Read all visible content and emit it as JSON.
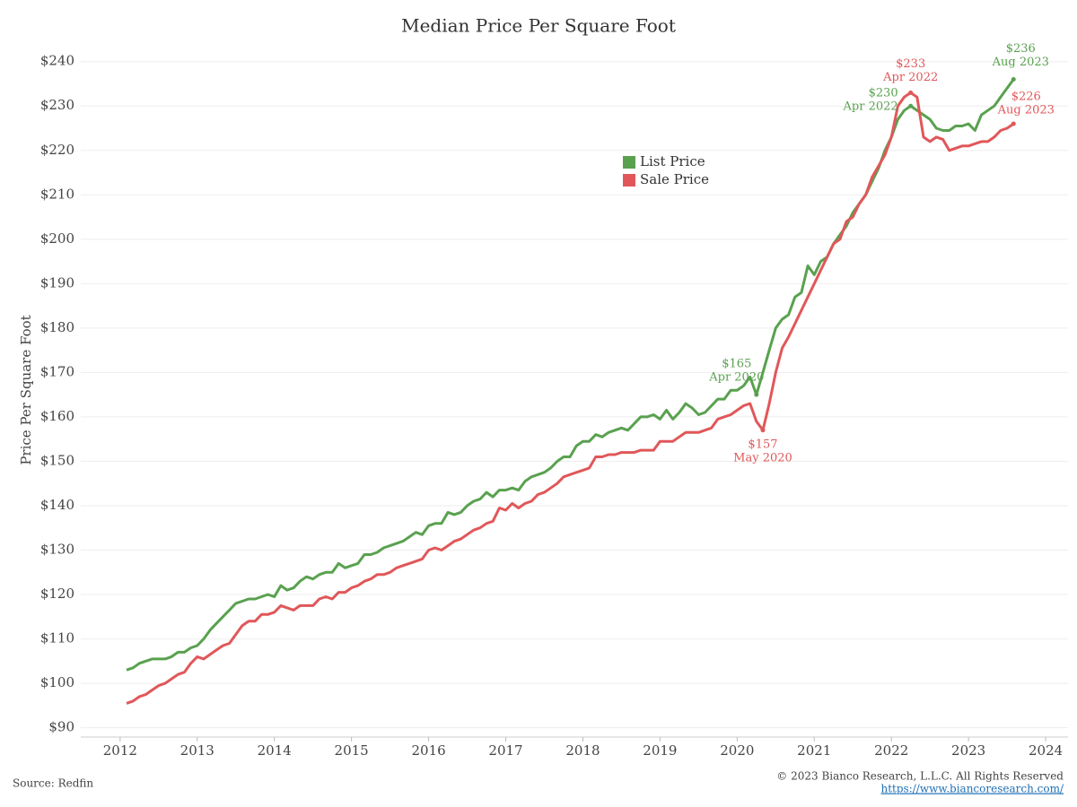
{
  "chart_data": {
    "type": "line",
    "title": "Median Price Per Square Foot",
    "y_label": "Price Per Square Foot",
    "source": "Source: Redfin",
    "copyright": "© 2023 Bianco Research, L.L.C. All Rights Reserved",
    "url": "https://www.biancoresearch.com/",
    "legend": "top-center",
    "grid": true,
    "x": [
      "2012-02",
      "2012-03",
      "2012-04",
      "2012-05",
      "2012-06",
      "2012-07",
      "2012-08",
      "2012-09",
      "2012-10",
      "2012-11",
      "2012-12",
      "2013-01",
      "2013-02",
      "2013-03",
      "2013-04",
      "2013-05",
      "2013-06",
      "2013-07",
      "2013-08",
      "2013-09",
      "2013-10",
      "2013-11",
      "2013-12",
      "2014-01",
      "2014-02",
      "2014-03",
      "2014-04",
      "2014-05",
      "2014-06",
      "2014-07",
      "2014-08",
      "2014-09",
      "2014-10",
      "2014-11",
      "2014-12",
      "2015-01",
      "2015-02",
      "2015-03",
      "2015-04",
      "2015-05",
      "2015-06",
      "2015-07",
      "2015-08",
      "2015-09",
      "2015-10",
      "2015-11",
      "2015-12",
      "2016-01",
      "2016-02",
      "2016-03",
      "2016-04",
      "2016-05",
      "2016-06",
      "2016-07",
      "2016-08",
      "2016-09",
      "2016-10",
      "2016-11",
      "2016-12",
      "2017-01",
      "2017-02",
      "2017-03",
      "2017-04",
      "2017-05",
      "2017-06",
      "2017-07",
      "2017-08",
      "2017-09",
      "2017-10",
      "2017-11",
      "2017-12",
      "2018-01",
      "2018-02",
      "2018-03",
      "2018-04",
      "2018-05",
      "2018-06",
      "2018-07",
      "2018-08",
      "2018-09",
      "2018-10",
      "2018-11",
      "2018-12",
      "2019-01",
      "2019-02",
      "2019-03",
      "2019-04",
      "2019-05",
      "2019-06",
      "2019-07",
      "2019-08",
      "2019-09",
      "2019-10",
      "2019-11",
      "2019-12",
      "2020-01",
      "2020-02",
      "2020-03",
      "2020-04",
      "2020-05",
      "2020-06",
      "2020-07",
      "2020-08",
      "2020-09",
      "2020-10",
      "2020-11",
      "2020-12",
      "2021-01",
      "2021-02",
      "2021-03",
      "2021-04",
      "2021-05",
      "2021-06",
      "2021-07",
      "2021-08",
      "2021-09",
      "2021-10",
      "2021-11",
      "2021-12",
      "2022-01",
      "2022-02",
      "2022-03",
      "2022-04",
      "2022-05",
      "2022-06",
      "2022-07",
      "2022-08",
      "2022-09",
      "2022-10",
      "2022-11",
      "2022-12",
      "2023-01",
      "2023-02",
      "2023-03",
      "2023-04",
      "2023-05",
      "2023-06",
      "2023-07",
      "2023-08"
    ],
    "series": [
      {
        "name": "List Price",
        "color": "#59a14f",
        "values": [
          103,
          103.5,
          104.5,
          105,
          105.5,
          105.5,
          105.5,
          106,
          107,
          107,
          108,
          108.5,
          110,
          112,
          113.5,
          115,
          116.5,
          118,
          118.5,
          119,
          119,
          119.5,
          120,
          119.5,
          122,
          121,
          121.5,
          123,
          124,
          123.5,
          124.5,
          125,
          125,
          127,
          126,
          126.5,
          127,
          129,
          129,
          129.5,
          130.5,
          131,
          131.5,
          132,
          133,
          134,
          133.5,
          135.5,
          136,
          136,
          138.5,
          138,
          138.5,
          140,
          141,
          141.5,
          143,
          142,
          143.5,
          143.5,
          144,
          143.5,
          145.5,
          146.5,
          147,
          147.5,
          148.5,
          150,
          151,
          151,
          153.5,
          154.5,
          154.5,
          156,
          155.5,
          156.5,
          157,
          157.5,
          157,
          158.5,
          160,
          160,
          160.5,
          159.5,
          161.5,
          159.5,
          161,
          163,
          162,
          160.5,
          161,
          162.5,
          164,
          164,
          166,
          166,
          167,
          169,
          165,
          170,
          175,
          180,
          182,
          183,
          187,
          188,
          194,
          192,
          195,
          196,
          199,
          201,
          203,
          206,
          208,
          210,
          213,
          216,
          220,
          223,
          227,
          229,
          230,
          229,
          228,
          227,
          225,
          224.5,
          224.5,
          225.5,
          225.5,
          226,
          224.5,
          228,
          229,
          230,
          232,
          234,
          236
        ]
      },
      {
        "name": "Sale Price",
        "color": "#e15759",
        "values": [
          95.5,
          96,
          97,
          97.5,
          98.5,
          99.5,
          100,
          101,
          102,
          102.5,
          104.5,
          106,
          105.5,
          106.5,
          107.5,
          108.5,
          109,
          111,
          113,
          114,
          114,
          115.5,
          115.5,
          116,
          117.5,
          117,
          116.5,
          117.5,
          117.5,
          117.5,
          119,
          119.5,
          119,
          120.5,
          120.5,
          121.5,
          122,
          123,
          123.5,
          124.5,
          124.5,
          125,
          126,
          126.5,
          127,
          127.5,
          128,
          130,
          130.5,
          130,
          131,
          132,
          132.5,
          133.5,
          134.5,
          135,
          136,
          136.5,
          139.5,
          139,
          140.5,
          139.5,
          140.5,
          141,
          142.5,
          143,
          144,
          145,
          146.5,
          147,
          147.5,
          148,
          148.5,
          151,
          151,
          151.5,
          151.5,
          152,
          152,
          152,
          152.5,
          152.5,
          152.5,
          154.5,
          154.5,
          154.5,
          155.5,
          156.5,
          156.5,
          156.5,
          157,
          157.5,
          159.5,
          160,
          160.5,
          161.5,
          162.5,
          163,
          159,
          157,
          163,
          170,
          175.5,
          178,
          181,
          184,
          187,
          190,
          193,
          196,
          199,
          200,
          204,
          205,
          208,
          210,
          214,
          216.5,
          219,
          223,
          230,
          232,
          233,
          232,
          223,
          222,
          223,
          222.5,
          220,
          220.5,
          221,
          221,
          221.5,
          222,
          222,
          223,
          224.5,
          225,
          226
        ]
      }
    ],
    "annotations": [
      {
        "series": 0,
        "x": "2020-04",
        "label": "$165",
        "date": "Apr 2020"
      },
      {
        "series": 0,
        "x": "2022-04",
        "label": "$230",
        "date": "Apr 2022"
      },
      {
        "series": 0,
        "x": "2023-08",
        "label": "$236",
        "date": "Aug 2023"
      },
      {
        "series": 1,
        "x": "2022-04",
        "label": "$233",
        "date": "Apr 2022"
      },
      {
        "series": 1,
        "x": "2020-05",
        "label": "$157",
        "date": "May 2020"
      },
      {
        "series": 1,
        "x": "2023-08",
        "label": "$226",
        "date": "Aug 2023"
      }
    ],
    "xlim": [
      2011.49,
      2024.29
    ],
    "xticks": [
      2012,
      2013,
      2014,
      2015,
      2016,
      2017,
      2018,
      2019,
      2020,
      2021,
      2022,
      2023,
      2024
    ],
    "ylim": [
      87.5,
      246
    ],
    "yticks": [
      {
        "value": 90,
        "label": "$90"
      },
      {
        "value": 100,
        "label": "$100"
      },
      {
        "value": 110,
        "label": "$110"
      },
      {
        "value": 120,
        "label": "$120"
      },
      {
        "value": 130,
        "label": "$130"
      },
      {
        "value": 140,
        "label": "$140"
      },
      {
        "value": 150,
        "label": "$150"
      },
      {
        "value": 160,
        "label": "$160"
      },
      {
        "value": 170,
        "label": "$170"
      },
      {
        "value": 180,
        "label": "$180"
      },
      {
        "value": 190,
        "label": "$190"
      },
      {
        "value": 200,
        "label": "$200"
      },
      {
        "value": 210,
        "label": "$210"
      },
      {
        "value": 220,
        "label": "$220"
      },
      {
        "value": 230,
        "label": "$230"
      },
      {
        "value": 240,
        "label": "$240"
      }
    ]
  }
}
